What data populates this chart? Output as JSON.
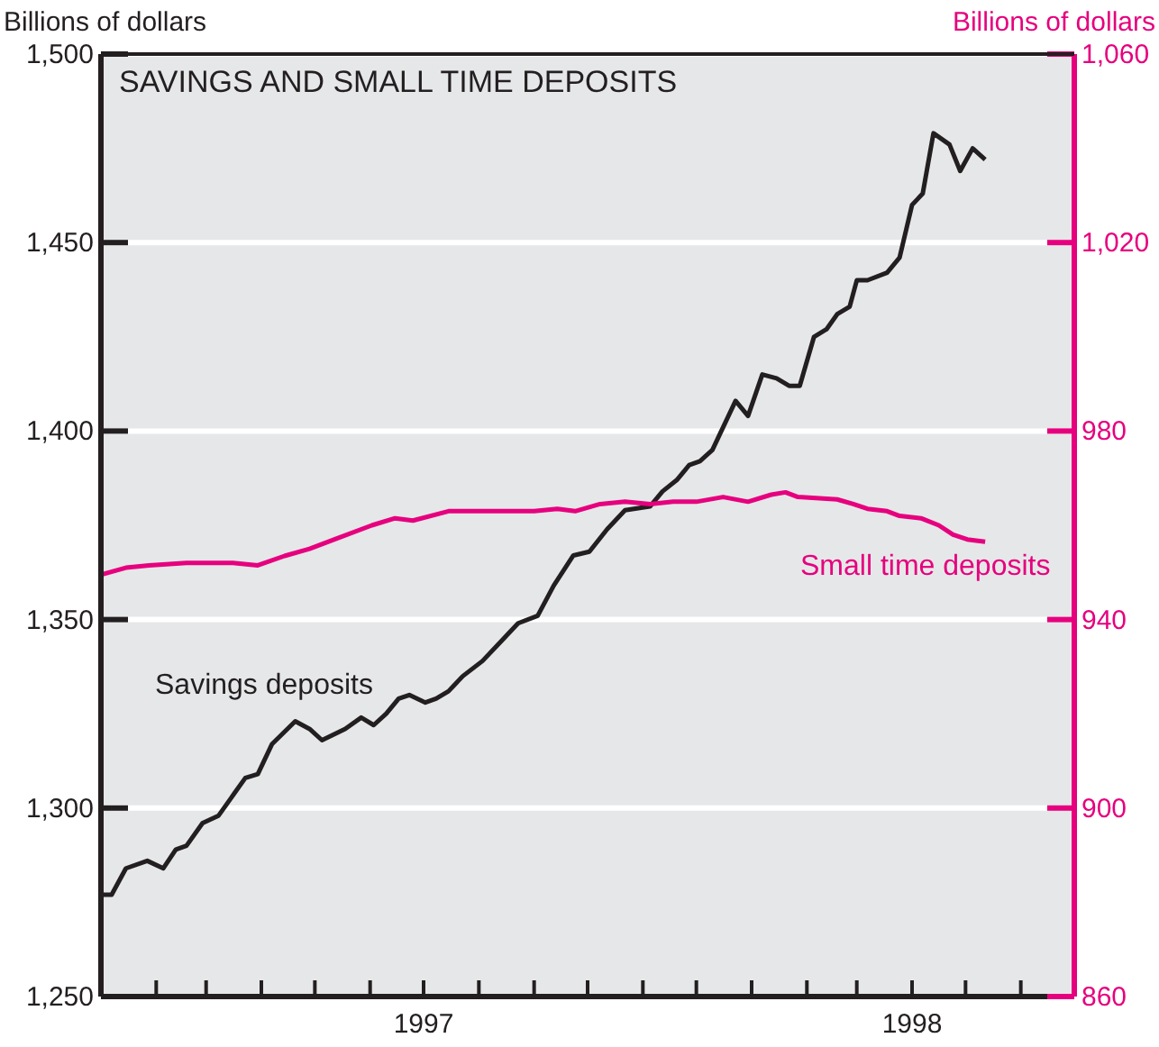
{
  "chart_data": {
    "type": "line",
    "title": "SAVINGS AND SMALL TIME DEPOSITS",
    "ylabel": "Billions of dollars",
    "y2label": "Billions of dollars",
    "xlim": [
      "1997-01-01",
      "1998-07-01"
    ],
    "xticks": [
      {
        "value": "1997-02-01",
        "label": null
      },
      {
        "value": "1997-03-01",
        "label": null
      },
      {
        "value": "1997-04-01",
        "label": null
      },
      {
        "value": "1997-05-01",
        "label": null
      },
      {
        "value": "1997-06-01",
        "label": null
      },
      {
        "value": "1997-07-01",
        "label": "1997"
      },
      {
        "value": "1997-08-01",
        "label": null
      },
      {
        "value": "1997-09-01",
        "label": null
      },
      {
        "value": "1997-10-01",
        "label": null
      },
      {
        "value": "1997-11-01",
        "label": null
      },
      {
        "value": "1997-12-01",
        "label": null
      },
      {
        "value": "1998-01-01",
        "label": null
      },
      {
        "value": "1998-02-01",
        "label": null
      },
      {
        "value": "1998-03-01",
        "label": null
      },
      {
        "value": "1998-04-01",
        "label": "1998"
      },
      {
        "value": "1998-05-01",
        "label": null
      },
      {
        "value": "1998-06-01",
        "label": null
      }
    ],
    "ylim": [
      1250,
      1500
    ],
    "yticks": [
      {
        "value": 1250,
        "label": "1,250"
      },
      {
        "value": 1300,
        "label": "1,300"
      },
      {
        "value": 1350,
        "label": "1,350"
      },
      {
        "value": 1400,
        "label": "1,400"
      },
      {
        "value": 1450,
        "label": "1,450"
      },
      {
        "value": 1500,
        "label": "1,500"
      }
    ],
    "y2lim": [
      860,
      1060
    ],
    "y2ticks": [
      860,
      900,
      940,
      980,
      {
        "value": 1020,
        "label": "1,020"
      },
      {
        "value": 1060,
        "label": "1,060"
      }
    ],
    "grid": "y",
    "marker": "none",
    "line_style": "solid",
    "series": [
      {
        "name": "Savings deposits",
        "color": "#231f20",
        "x": [
          "1997-01-01",
          "1997-01-07",
          "1997-01-15",
          "1997-01-27",
          "1997-02-05",
          "1997-02-12",
          "1997-02-18",
          "1997-02-27",
          "1997-03-08",
          "1997-03-17",
          "1997-03-23",
          "1997-03-30",
          "1997-04-07",
          "1997-04-20",
          "1997-04-28",
          "1997-05-05",
          "1997-05-18",
          "1997-05-27",
          "1997-06-03",
          "1997-06-10",
          "1997-06-17",
          "1997-06-23",
          "1997-07-02",
          "1997-07-08",
          "1997-07-15",
          "1997-07-23",
          "1997-08-03",
          "1997-08-13",
          "1997-08-23",
          "1997-09-03",
          "1997-09-12",
          "1997-09-23",
          "1997-10-02",
          "1997-10-12",
          "1997-10-22",
          "1997-11-05",
          "1997-11-12",
          "1997-11-20",
          "1997-11-27",
          "1997-12-03",
          "1997-12-10",
          "1997-12-23",
          "1997-12-30",
          "1998-01-07",
          "1998-01-15",
          "1998-01-22",
          "1998-01-28",
          "1998-02-05",
          "1998-02-12",
          "1998-02-18",
          "1998-02-25",
          "1998-03-01",
          "1998-03-07",
          "1998-03-18",
          "1998-03-25",
          "1998-04-01",
          "1998-04-07",
          "1998-04-13",
          "1998-04-22",
          "1998-04-28",
          "1998-05-05",
          "1998-05-12"
        ],
        "values": [
          1277,
          1277,
          1284,
          1286,
          1284,
          1289,
          1290,
          1296,
          1298,
          1304,
          1308,
          1309,
          1317,
          1323,
          1321,
          1318,
          1321,
          1324,
          1322,
          1325,
          1329,
          1330,
          1328,
          1329,
          1331,
          1335,
          1339,
          1344,
          1349,
          1351,
          1359,
          1367,
          1368,
          1374,
          1379,
          1380,
          1384,
          1387,
          1391,
          1392,
          1395,
          1408,
          1404,
          1415,
          1414,
          1412,
          1412,
          1425,
          1427,
          1431,
          1433,
          1440,
          1440,
          1442,
          1446,
          1460,
          1463,
          1479,
          1476,
          1469,
          1475,
          1472
        ]
      },
      {
        "name": "Small time deposits",
        "color": "#e6007e",
        "axis": "y2",
        "x": [
          "1997-01-01",
          "1997-01-15",
          "1997-01-28",
          "1997-02-18",
          "1997-03-03",
          "1997-03-16",
          "1997-03-30",
          "1997-04-14",
          "1997-04-28",
          "1997-05-12",
          "1997-06-02",
          "1997-06-15",
          "1997-06-25",
          "1997-07-15",
          "1997-07-28",
          "1997-08-04",
          "1997-08-17",
          "1997-09-01",
          "1997-09-14",
          "1997-09-24",
          "1997-10-08",
          "1997-10-22",
          "1997-11-05",
          "1997-11-18",
          "1997-12-01",
          "1997-12-16",
          "1997-12-30",
          "1998-01-12",
          "1998-01-20",
          "1998-01-27",
          "1998-02-18",
          "1998-02-27",
          "1998-03-07",
          "1998-03-18",
          "1998-03-25",
          "1998-04-06",
          "1998-04-16",
          "1998-04-24",
          "1998-05-02",
          "1998-05-12"
        ],
        "values": [
          949.5,
          951,
          951.5,
          952,
          952,
          952,
          951.5,
          953.5,
          955,
          957,
          960,
          961.5,
          961,
          963,
          963,
          963,
          963,
          963,
          963.5,
          963,
          964.5,
          965,
          964.5,
          965,
          965,
          966,
          965,
          966.5,
          967,
          966,
          965.5,
          964.5,
          963.5,
          963,
          962,
          961.5,
          960,
          958,
          957,
          956.5
        ]
      }
    ]
  }
}
